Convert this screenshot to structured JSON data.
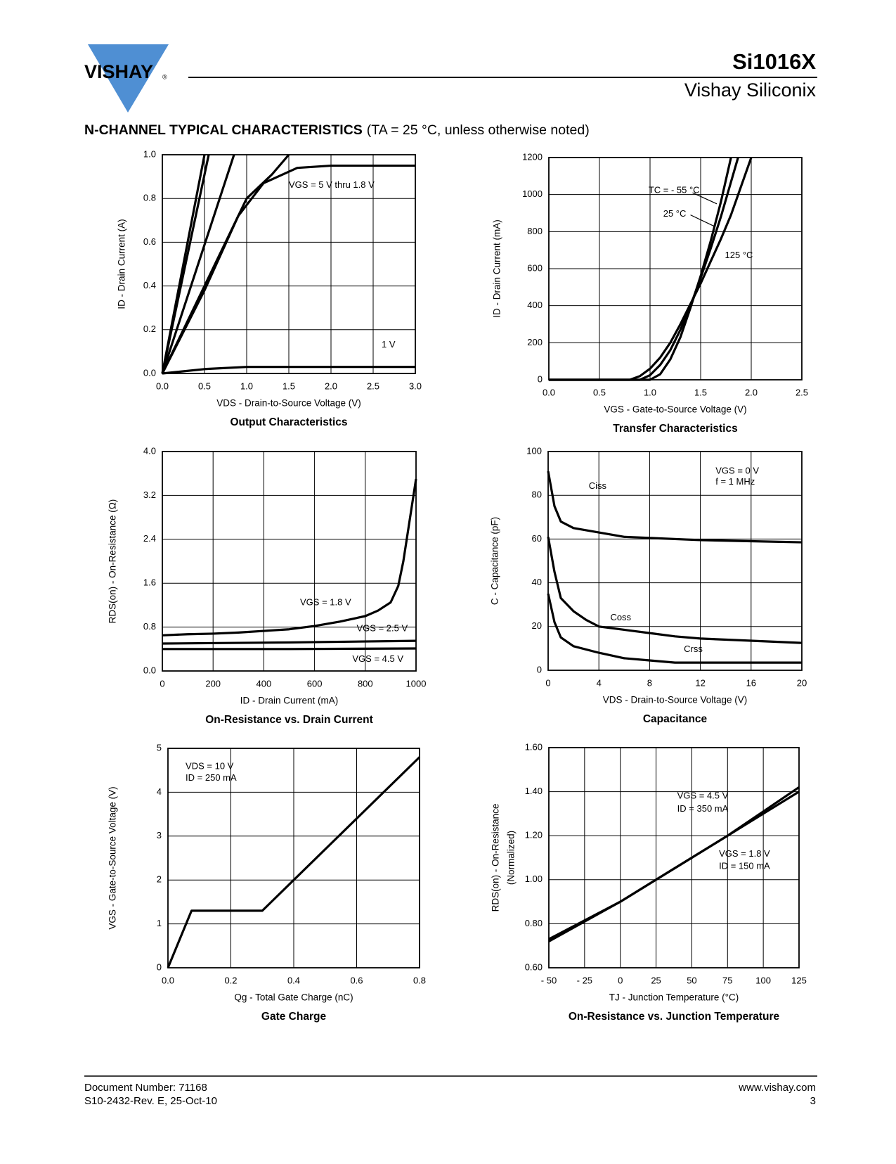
{
  "header": {
    "logo_text": "VISHAY",
    "logo_mark": "®",
    "part_number": "Si1016X",
    "company": "Vishay Siliconix"
  },
  "section_title": {
    "bold": "N-CHANNEL TYPICAL CHARACTERISTICS",
    "note": "(TA = 25 °C, unless otherwise noted)"
  },
  "chart_data": [
    {
      "type": "line",
      "title": "Output Characteristics",
      "x_label": "VDS - Drain-to-Source Voltage (V)",
      "y_label": "ID - Drain Current (A)",
      "xlim": [
        0,
        3
      ],
      "ylim": [
        0,
        1
      ],
      "grid": true,
      "color": "#000000",
      "xticks": [
        {
          "value": 0,
          "label": "0.0"
        },
        0.5,
        {
          "value": 1,
          "label": "1.0"
        },
        1.5,
        {
          "value": 2,
          "label": "2.0"
        },
        2.5,
        {
          "value": 3,
          "label": "3.0"
        }
      ],
      "yticks": [
        {
          "value": 0,
          "label": "0.0"
        },
        0.2,
        0.4,
        0.6,
        0.8,
        {
          "value": 1,
          "label": "1.0"
        }
      ],
      "series": [
        {
          "x": [
            0,
            0.5
          ],
          "values": [
            0,
            1.0
          ]
        },
        {
          "x": [
            0,
            0.55
          ],
          "values": [
            0,
            1.0
          ]
        },
        {
          "x": [
            0,
            0.85
          ],
          "values": [
            0,
            1.0
          ]
        },
        {
          "x": [
            0,
            0.5,
            1.0,
            1.3,
            1.5
          ],
          "values": [
            0,
            0.4,
            0.8,
            0.91,
            1.0
          ]
        },
        {
          "x": [
            0,
            0.5,
            0.9,
            1.2,
            1.6,
            2.0,
            3.0
          ],
          "values": [
            0,
            0.38,
            0.72,
            0.87,
            0.94,
            0.95,
            0.95
          ]
        },
        {
          "x": [
            0,
            0.5,
            1.0,
            3.0
          ],
          "values": [
            0,
            0.02,
            0.03,
            0.03
          ]
        }
      ],
      "annotations": [
        "VGS = 5 V thru 1.8 V",
        "1 V"
      ]
    },
    {
      "type": "line",
      "title": "Transfer Characteristics",
      "x_label": "VGS - Gate-to-Source Voltage (V)",
      "y_label": "ID - Drain Current (mA)",
      "xlim": [
        0,
        2.5
      ],
      "ylim": [
        0,
        1200
      ],
      "grid": true,
      "color": "#000000",
      "xticks": [
        {
          "value": 0,
          "label": "0.0"
        },
        0.5,
        {
          "value": 1,
          "label": "1.0"
        },
        1.5,
        {
          "value": 2,
          "label": "2.0"
        },
        2.5
      ],
      "yticks": [
        0,
        200,
        400,
        600,
        800,
        1000,
        1200
      ],
      "series": [
        {
          "x": [
            0,
            1.0,
            1.1,
            1.2,
            1.3,
            1.4,
            1.5,
            1.6,
            1.7,
            1.8
          ],
          "values": [
            0,
            0,
            30,
            110,
            230,
            390,
            560,
            750,
            960,
            1200
          ]
        },
        {
          "x": [
            0,
            0.9,
            1.0,
            1.1,
            1.2,
            1.3,
            1.4,
            1.5,
            1.6,
            1.7,
            1.87
          ],
          "values": [
            0,
            0,
            25,
            80,
            160,
            270,
            400,
            550,
            710,
            880,
            1200
          ]
        },
        {
          "x": [
            0,
            0.8,
            0.9,
            1.0,
            1.1,
            1.2,
            1.3,
            1.4,
            1.5,
            1.6,
            1.7,
            1.8,
            2.0
          ],
          "values": [
            0,
            0,
            20,
            60,
            120,
            200,
            300,
            410,
            520,
            640,
            760,
            890,
            1200
          ]
        }
      ],
      "annotations": [
        "TC = - 55 °C",
        "25 °C",
        "125 °C"
      ]
    },
    {
      "type": "line",
      "title": "On-Resistance vs. Drain Current",
      "x_label": "ID - Drain Current (mA)",
      "y_label": "RDS(on) - On-Resistance (Ω)",
      "xlim": [
        0,
        1000
      ],
      "ylim": [
        0,
        4
      ],
      "grid": true,
      "color": "#000000",
      "xticks": [
        0,
        200,
        400,
        600,
        800,
        1000
      ],
      "yticks": [
        {
          "value": 0,
          "label": "0.0"
        },
        0.8,
        1.6,
        2.4,
        3.2,
        {
          "value": 4,
          "label": "4.0"
        }
      ],
      "series": [
        {
          "x": [
            0,
            100,
            200,
            300,
            400,
            500,
            600,
            700,
            800,
            850,
            900,
            930,
            950,
            1000
          ],
          "values": [
            0.65,
            0.67,
            0.68,
            0.7,
            0.73,
            0.76,
            0.82,
            0.9,
            1.0,
            1.1,
            1.25,
            1.55,
            2.0,
            3.5
          ]
        },
        {
          "x": [
            0,
            500,
            1000
          ],
          "values": [
            0.5,
            0.52,
            0.55
          ]
        },
        {
          "x": [
            0,
            500,
            1000
          ],
          "values": [
            0.4,
            0.4,
            0.41
          ]
        }
      ],
      "annotations": [
        "VGS = 1.8 V",
        "VGS = 2.5 V",
        "VGS = 4.5 V"
      ]
    },
    {
      "type": "line",
      "title": "Capacitance",
      "x_label": "VDS - Drain-to-Source Voltage (V)",
      "y_label": "C - Capacitance (pF)",
      "xlim": [
        0,
        20
      ],
      "ylim": [
        0,
        100
      ],
      "grid": true,
      "color": "#000000",
      "xticks": [
        0,
        4,
        8,
        12,
        16,
        20
      ],
      "yticks": [
        0,
        20,
        40,
        60,
        80,
        100
      ],
      "series": [
        {
          "x": [
            0,
            0.5,
            1,
            2,
            4,
            6,
            8,
            12,
            16,
            20
          ],
          "values": [
            91,
            75,
            68,
            65,
            63,
            61,
            60.5,
            59.5,
            59,
            58.5
          ]
        },
        {
          "x": [
            0,
            0.5,
            1,
            2,
            3,
            4,
            6,
            8,
            10,
            12,
            16,
            20
          ],
          "values": [
            61,
            45,
            33,
            27,
            23,
            20,
            18.5,
            17,
            15.5,
            14.5,
            13.5,
            12.5
          ]
        },
        {
          "x": [
            0,
            0.5,
            1,
            2,
            4,
            6,
            8,
            10,
            12,
            16,
            20
          ],
          "values": [
            35,
            22,
            15,
            11,
            8,
            5.5,
            4.5,
            3.5,
            3.5,
            3.5,
            3.5
          ]
        }
      ],
      "annotations": [
        "Ciss",
        "Coss",
        "Crss",
        "VGS = 0 V",
        "f = 1 MHz"
      ]
    },
    {
      "type": "line",
      "title": "Gate Charge",
      "x_label": "Qg - Total Gate Charge (nC)",
      "y_label": "VGS - Gate-to-Source Voltage (V)",
      "xlim": [
        0,
        0.8
      ],
      "ylim": [
        0,
        5
      ],
      "grid": true,
      "color": "#000000",
      "xticks": [
        {
          "value": 0,
          "label": "0.0"
        },
        0.2,
        0.4,
        0.6,
        0.8
      ],
      "yticks": [
        0,
        1,
        2,
        3,
        4,
        5
      ],
      "series": [
        {
          "x": [
            0,
            0.075,
            0.3,
            0.8
          ],
          "values": [
            0,
            1.3,
            1.3,
            4.8
          ]
        }
      ],
      "annotations": [
        "VDS = 10 V",
        "ID = 250 mA"
      ]
    },
    {
      "type": "line",
      "title": "On-Resistance vs. Junction Temperature",
      "x_label": "TJ - Junction Temperature (°C)",
      "y_label": [
        "RDS(on) - On-Resistance",
        "(Normalized)"
      ],
      "xlim": [
        -50,
        125
      ],
      "ylim": [
        0.6,
        1.6
      ],
      "grid": true,
      "color": "#000000",
      "xticks": [
        {
          "value": -50,
          "label": "- 50"
        },
        {
          "value": -25,
          "label": "- 25"
        },
        0,
        25,
        50,
        75,
        100,
        125
      ],
      "yticks": [
        {
          "value": 0.6,
          "label": "0.60"
        },
        {
          "value": 0.8,
          "label": "0.80"
        },
        {
          "value": 1,
          "label": "1.00"
        },
        {
          "value": 1.2,
          "label": "1.20"
        },
        {
          "value": 1.4,
          "label": "1.40"
        },
        {
          "value": 1.6,
          "label": "1.60"
        }
      ],
      "series": [
        {
          "x": [
            -50,
            0,
            25,
            50,
            75,
            100,
            125
          ],
          "values": [
            0.73,
            0.9,
            1.0,
            1.1,
            1.2,
            1.31,
            1.42
          ]
        },
        {
          "x": [
            -50,
            0,
            25,
            50,
            75,
            100,
            125
          ],
          "values": [
            0.72,
            0.9,
            1.0,
            1.1,
            1.2,
            1.3,
            1.4
          ]
        }
      ],
      "annotations": [
        "VGS = 4.5 V",
        "ID = 350 mA",
        "VGS = 1.8 V",
        "ID = 150 mA"
      ]
    }
  ],
  "footer": {
    "doc_number": "Document Number: 71168",
    "revision": "S10-2432-Rev. E, 25-Oct-10",
    "website": "www.vishay.com",
    "page": "3"
  }
}
